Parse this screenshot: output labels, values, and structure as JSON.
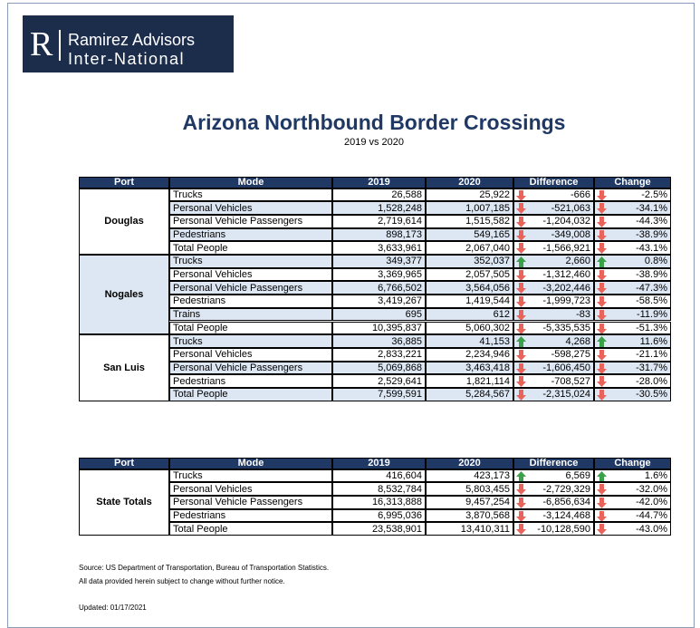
{
  "logo": {
    "letter": "R",
    "line1": "Ramirez Advisors",
    "line2": "Inter-National"
  },
  "title": "Arizona Northbound Border Crossings",
  "subtitle": "2019 vs 2020",
  "tables": [
    {
      "header": [
        "Port",
        "Mode",
        "2019",
        "2020",
        "Difference",
        "Change"
      ],
      "groups": [
        {
          "port": "Douglas",
          "rows": [
            [
              "Trucks",
              "26,588",
              "25,922",
              "-666",
              "-2.5%"
            ],
            [
              "Personal Vehicles",
              "1,528,248",
              "1,007,185",
              "-521,063",
              "-34.1%"
            ],
            [
              "Personal Vehicle Passengers",
              "2,719,614",
              "1,515,582",
              "-1,204,032",
              "-44.3%"
            ],
            [
              "Pedestrians",
              "898,173",
              "549,165",
              "-349,008",
              "-38.9%"
            ],
            [
              "Total People",
              "3,633,961",
              "2,067,040",
              "-1,566,921",
              "-43.1%"
            ]
          ]
        },
        {
          "port": "Nogales",
          "rows": [
            [
              "Trucks",
              "349,377",
              "352,037",
              "2,660",
              "0.8%"
            ],
            [
              "Personal Vehicles",
              "3,369,965",
              "2,057,505",
              "-1,312,460",
              "-38.9%"
            ],
            [
              "Personal Vehicle Passengers",
              "6,766,502",
              "3,564,056",
              "-3,202,446",
              "-47.3%"
            ],
            [
              "Pedestrians",
              "3,419,267",
              "1,419,544",
              "-1,999,723",
              "-58.5%"
            ],
            [
              "Trains",
              "695",
              "612",
              "-83",
              "-11.9%"
            ],
            [
              "Total People",
              "10,395,837",
              "5,060,302",
              "-5,335,535",
              "-51.3%"
            ]
          ]
        },
        {
          "port": "San Luis",
          "rows": [
            [
              "Trucks",
              "36,885",
              "41,153",
              "4,268",
              "11.6%"
            ],
            [
              "Personal Vehicles",
              "2,833,221",
              "2,234,946",
              "-598,275",
              "-21.1%"
            ],
            [
              "Personal Vehicle Passengers",
              "5,069,868",
              "3,463,418",
              "-1,606,450",
              "-31.7%"
            ],
            [
              "Pedestrians",
              "2,529,641",
              "1,821,114",
              "-708,527",
              "-28.0%"
            ],
            [
              "Total People",
              "7,599,591",
              "5,284,567",
              "-2,315,024",
              "-30.5%"
            ]
          ]
        }
      ]
    },
    {
      "header": [
        "Port",
        "Mode",
        "2019",
        "2020",
        "Difference",
        "Change"
      ],
      "groups": [
        {
          "port": "State Totals",
          "rows": [
            [
              "Trucks",
              "416,604",
              "423,173",
              "6,569",
              "1.6%"
            ],
            [
              "Personal Vehicles",
              "8,532,784",
              "5,803,455",
              "-2,729,329",
              "-32.0%"
            ],
            [
              "Personal Vehicle Passengers",
              "16,313,888",
              "9,457,254",
              "-6,856,634",
              "-42.0%"
            ],
            [
              "Pedestrians",
              "6,995,036",
              "3,870,568",
              "-3,124,468",
              "-44.7%"
            ],
            [
              "Total People",
              "23,538,901",
              "13,410,311",
              "-10,128,590",
              "-43.0%"
            ]
          ]
        }
      ]
    }
  ],
  "notes": [
    "Source: US Department of Transportation, Bureau of Transportation Statistics.",
    "All data provided herein subject to change without further notice."
  ],
  "updated": "Updated: 01/17/2021"
}
